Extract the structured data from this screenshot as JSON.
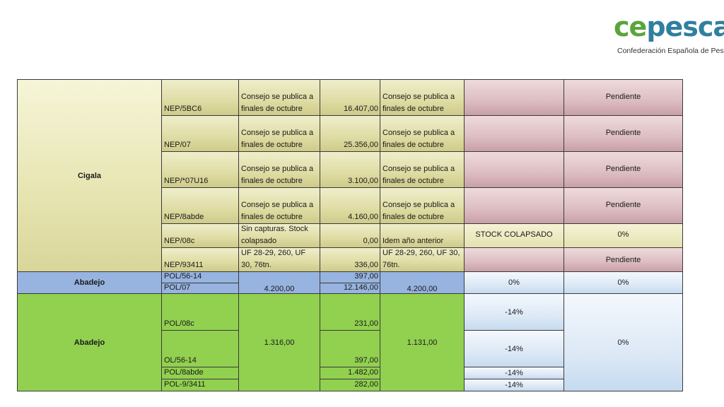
{
  "logo": {
    "word_ce": "ce",
    "word_pesca": "pesca",
    "subtitle": "Confederación Española de Pesca"
  },
  "cigala": {
    "species": "Cigala",
    "rows": [
      {
        "code": "NEP/5BC6",
        "advice": "Consejo se publica a finales de octubre",
        "quota": "16.407,00",
        "advice2": "Consejo se publica a finales de octubre",
        "status": "",
        "change": "Pendiente"
      },
      {
        "code": "NEP/07",
        "advice": "Consejo se publica a finales de octubre",
        "quota": "25.356,00",
        "advice2": "Consejo se publica a finales de octubre",
        "status": "",
        "change": "Pendiente"
      },
      {
        "code": "NEP/*07U16",
        "advice": "Consejo se publica a finales de octubre",
        "quota": "3.100,00",
        "advice2": "Consejo se publica a finales de octubre",
        "status": "",
        "change": "Pendiente"
      },
      {
        "code": "NEP/8abde",
        "advice": "Consejo se publica a finales de octubre",
        "quota": "4.160,00",
        "advice2": "Consejo se publica a finales de octubre",
        "status": "",
        "change": "Pendiente"
      },
      {
        "code": "NEP/08c",
        "advice": "Sin capturas. Stock colapsado",
        "quota": "0,00",
        "advice2": "Idem año anterior",
        "status": "STOCK COLAPSADO",
        "change": "0%"
      },
      {
        "code": "NEP/93411",
        "advice": "UF 28-29, 260, UF 30, 76tn.",
        "quota": "336,00",
        "advice2": "UF 28-29, 260, UF 30, 76tn.",
        "status": "",
        "change": "Pendiente"
      }
    ]
  },
  "abadejo1": {
    "species": "Abadejo",
    "codes": [
      "POL/56-14",
      "POL/07"
    ],
    "advice": "4.200,00",
    "quotas": [
      "397,00",
      "12.146,00"
    ],
    "advice2": "4.200,00",
    "status": "0%",
    "change": "0%"
  },
  "abadejo2": {
    "species": "Abadejo",
    "codes": [
      "POL/08c",
      "OL/56-14",
      "POL/8abde",
      "POL-9/3411"
    ],
    "advice": "1.316,00",
    "quotas": [
      "231,00",
      "397,00",
      "1.482,00",
      "282,00"
    ],
    "advice2": "1.131,00",
    "status": [
      "-14%",
      "-14%",
      "-14%",
      "-14%"
    ],
    "change": "0%"
  }
}
